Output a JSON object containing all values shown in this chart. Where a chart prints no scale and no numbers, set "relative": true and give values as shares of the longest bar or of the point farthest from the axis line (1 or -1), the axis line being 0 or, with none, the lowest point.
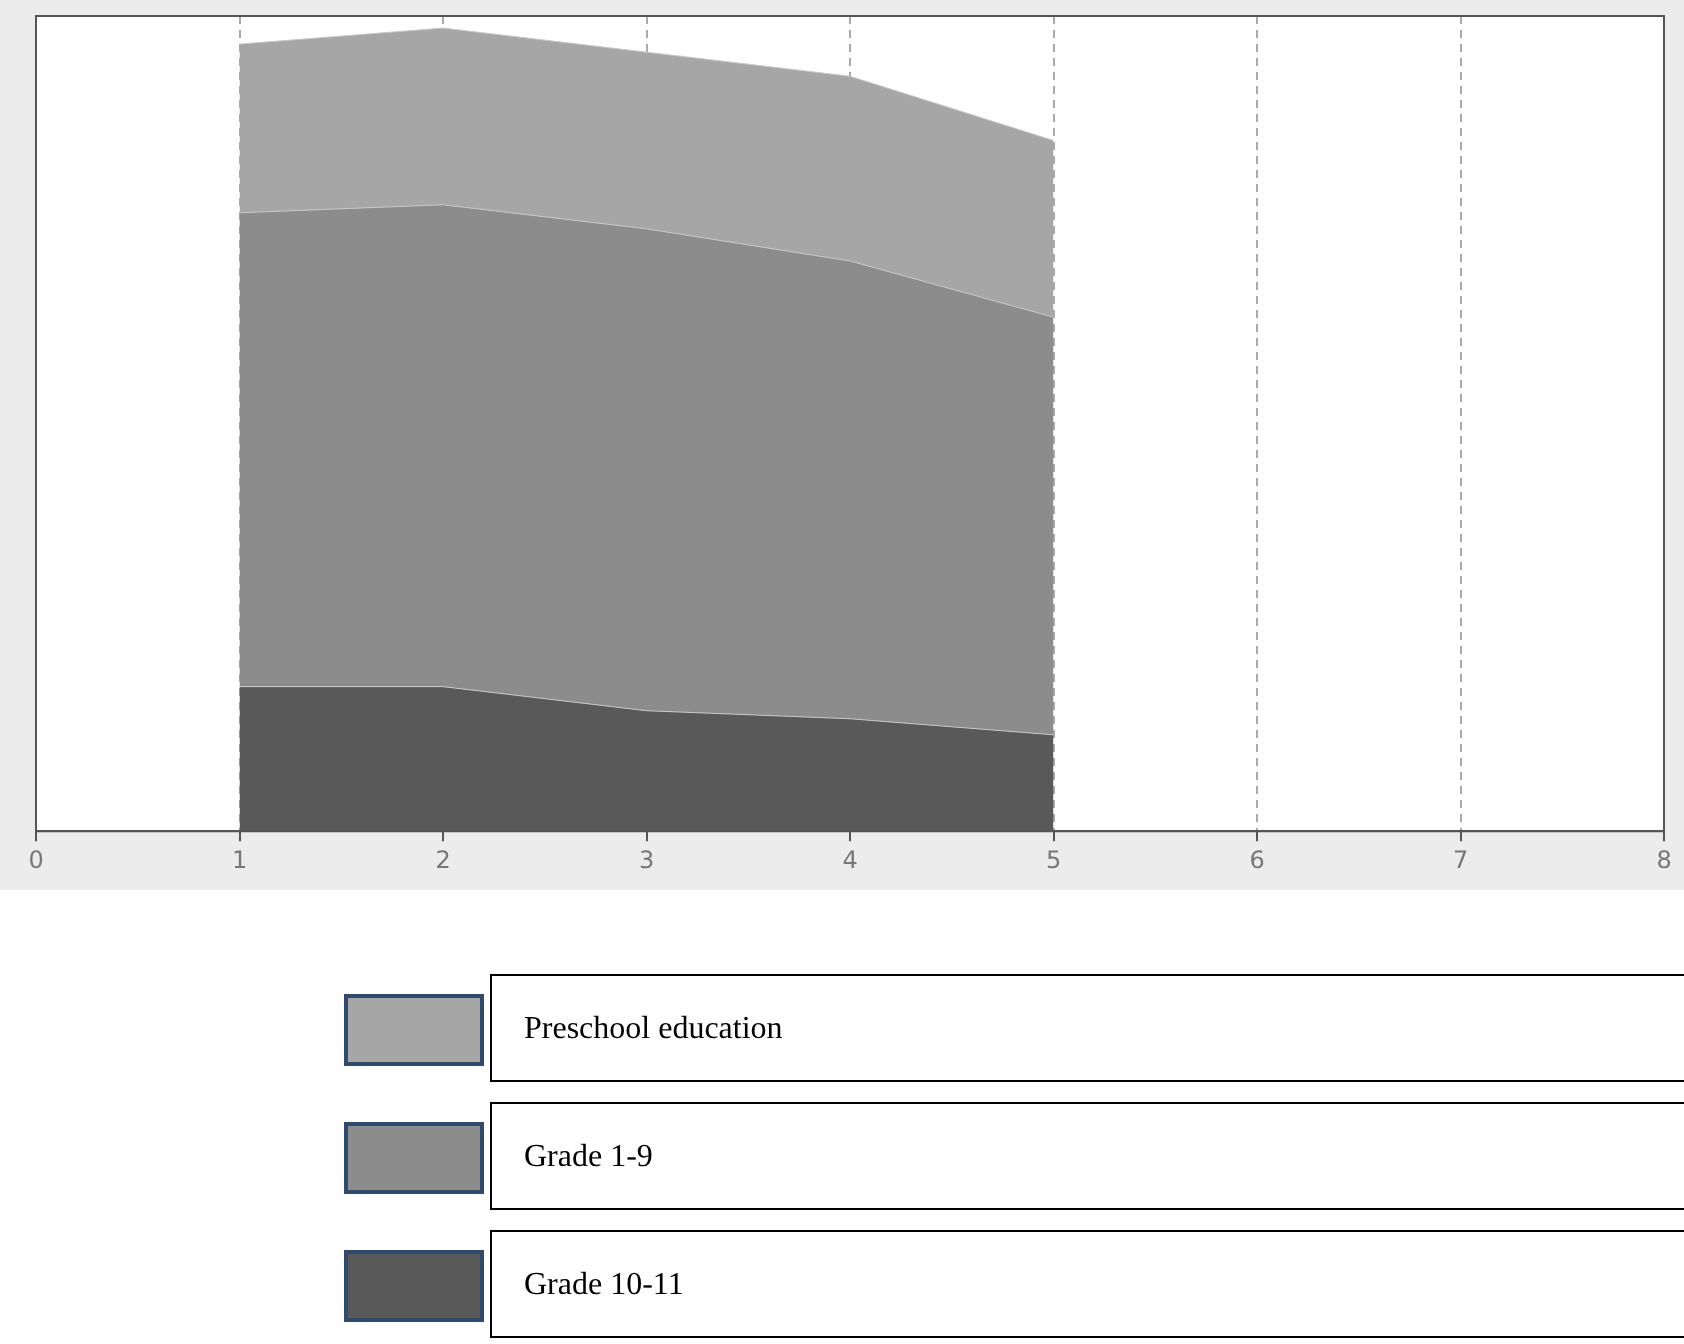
{
  "chart_data": {
    "type": "area",
    "stacked": true,
    "relative": true,
    "x": [
      1,
      2,
      3,
      4,
      5
    ],
    "xlim": [
      0,
      8
    ],
    "xticks": [
      0,
      1,
      2,
      3,
      4,
      5,
      6,
      7,
      8
    ],
    "grid": "x",
    "legend": "bottom",
    "series": [
      {
        "name": "Grade 10-11",
        "color": "#595959",
        "values": [
          0.18,
          0.18,
          0.15,
          0.14,
          0.12
        ]
      },
      {
        "name": "Grade 1-9",
        "color": "#8c8c8c",
        "values": [
          0.59,
          0.6,
          0.6,
          0.57,
          0.52
        ]
      },
      {
        "name": "Preschool education",
        "color": "#a6a6a6",
        "values": [
          0.21,
          0.22,
          0.22,
          0.23,
          0.22
        ]
      }
    ]
  }
}
